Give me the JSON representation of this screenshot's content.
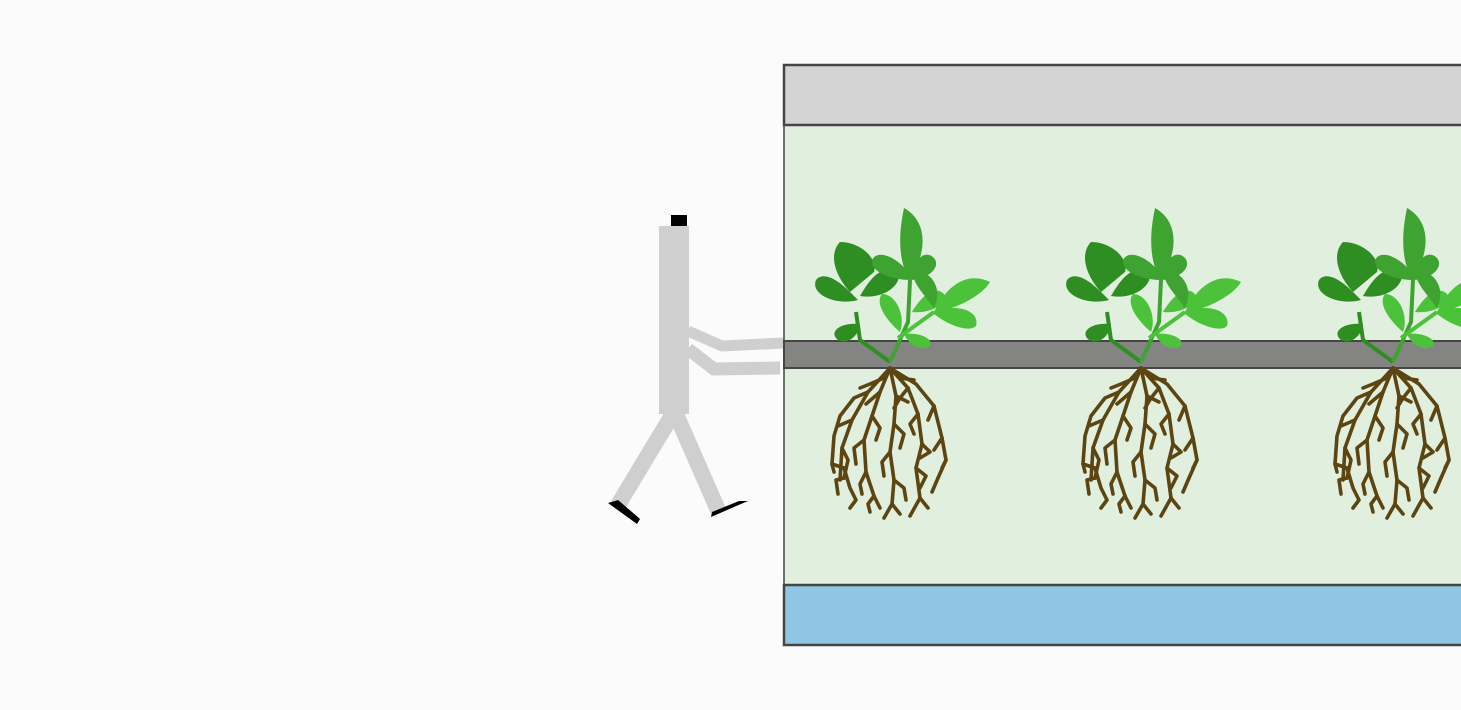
{
  "scene": {
    "person": {
      "icon": "walking-person-icon"
    },
    "unit": {
      "top_panel": {
        "icon": "panel-icon"
      },
      "chamber": {
        "icon": "growing-chamber"
      },
      "tray": {
        "icon": "plant-tray-icon"
      },
      "reservoir": {
        "icon": "water-reservoir-icon"
      },
      "plants": [
        {
          "id": "plant-1",
          "icon": "plant-icon",
          "roots_icon": "roots-icon"
        },
        {
          "id": "plant-2",
          "icon": "plant-icon",
          "roots_icon": "roots-icon"
        },
        {
          "id": "plant-3",
          "icon": "plant-icon",
          "roots_icon": "roots-icon"
        }
      ]
    }
  },
  "colors": {
    "background": "#fbfbfb",
    "panel": "#d4d4d4",
    "outline": "#454545",
    "chamber": "#e1efdf",
    "tray": "#848582",
    "reservoir": "#8fc6e3",
    "person": "#cfcfcf",
    "person_accent": "#000000",
    "leaf_dark": "#2e8e22",
    "leaf_mid": "#3ea330",
    "leaf_light": "#4bc23a",
    "root": "#5c4510"
  }
}
